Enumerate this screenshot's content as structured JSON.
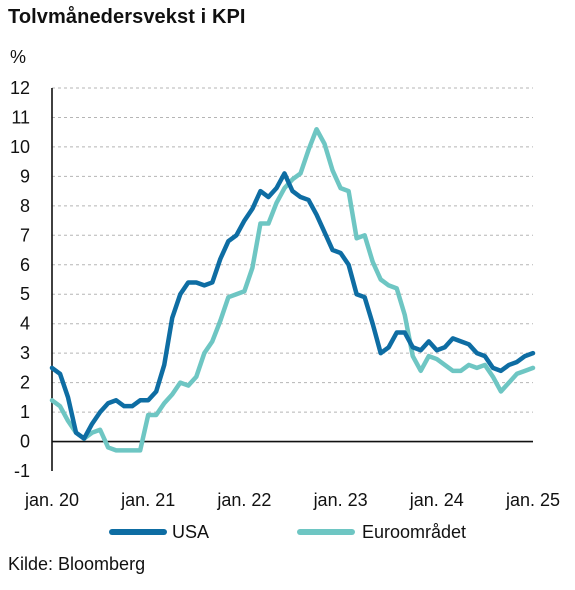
{
  "title": "Tolvmånedersvekst i KPI",
  "source": "Kilde: Bloomberg",
  "colors": {
    "USA": "#0e6da3",
    "Euroområdet": "#6ec6c3",
    "grid": "#b5b5b5",
    "axis": "#111111"
  },
  "chart_data": {
    "type": "line",
    "title": "Tolvmånedersvekst i KPI",
    "ylabel": "%",
    "xlabel": "",
    "ylim": [
      -1,
      12
    ],
    "yticks": [
      -1,
      0,
      1,
      2,
      3,
      4,
      5,
      6,
      7,
      8,
      9,
      10,
      11,
      12
    ],
    "xlim": [
      0,
      60
    ],
    "xticks": [
      {
        "x": 0,
        "label": "jan. 20"
      },
      {
        "x": 12,
        "label": "jan. 21"
      },
      {
        "x": 24,
        "label": "jan. 22"
      },
      {
        "x": 36,
        "label": "jan. 23"
      },
      {
        "x": 48,
        "label": "jan. 24"
      },
      {
        "x": 60,
        "label": "jan. 25"
      }
    ],
    "grid": "horizontal dashed",
    "legend": "bottom",
    "series": [
      {
        "name": "USA",
        "x": [
          0,
          1,
          2,
          3,
          4,
          5,
          6,
          7,
          8,
          9,
          10,
          11,
          12,
          13,
          14,
          15,
          16,
          17,
          18,
          19,
          20,
          21,
          22,
          23,
          24,
          25,
          26,
          27,
          28,
          29,
          30,
          31,
          32,
          33,
          34,
          35,
          36,
          37,
          38,
          39,
          40,
          41,
          42,
          43,
          44,
          45,
          46,
          47,
          48,
          49,
          50,
          51,
          52,
          53,
          54,
          55,
          56,
          57,
          58,
          59,
          60
        ],
        "values": [
          2.5,
          2.3,
          1.5,
          0.3,
          0.1,
          0.6,
          1.0,
          1.3,
          1.4,
          1.2,
          1.2,
          1.4,
          1.4,
          1.7,
          2.6,
          4.2,
          5.0,
          5.4,
          5.4,
          5.3,
          5.4,
          6.2,
          6.8,
          7.0,
          7.5,
          7.9,
          8.5,
          8.3,
          8.6,
          9.1,
          8.5,
          8.3,
          8.2,
          7.7,
          7.1,
          6.5,
          6.4,
          6.0,
          5.0,
          4.9,
          4.0,
          3.0,
          3.2,
          3.7,
          3.7,
          3.2,
          3.1,
          3.4,
          3.1,
          3.2,
          3.5,
          3.4,
          3.3,
          3.0,
          2.9,
          2.5,
          2.4,
          2.6,
          2.7,
          2.9,
          3.0
        ]
      },
      {
        "name": "Euroområdet",
        "x": [
          0,
          1,
          2,
          3,
          4,
          5,
          6,
          7,
          8,
          9,
          10,
          11,
          12,
          13,
          14,
          15,
          16,
          17,
          18,
          19,
          20,
          21,
          22,
          23,
          24,
          25,
          26,
          27,
          28,
          29,
          30,
          31,
          32,
          33,
          34,
          35,
          36,
          37,
          38,
          39,
          40,
          41,
          42,
          43,
          44,
          45,
          46,
          47,
          48,
          49,
          50,
          51,
          52,
          53,
          54,
          55,
          56,
          57,
          58,
          59,
          60
        ],
        "values": [
          1.4,
          1.2,
          0.7,
          0.3,
          0.1,
          0.3,
          0.4,
          -0.2,
          -0.3,
          -0.3,
          -0.3,
          -0.3,
          0.9,
          0.9,
          1.3,
          1.6,
          2.0,
          1.9,
          2.2,
          3.0,
          3.4,
          4.1,
          4.9,
          5.0,
          5.1,
          5.9,
          7.4,
          7.4,
          8.1,
          8.6,
          8.9,
          9.1,
          9.9,
          10.6,
          10.1,
          9.2,
          8.6,
          8.5,
          6.9,
          7.0,
          6.1,
          5.5,
          5.3,
          5.2,
          4.3,
          2.9,
          2.4,
          2.9,
          2.8,
          2.6,
          2.4,
          2.4,
          2.6,
          2.5,
          2.6,
          2.2,
          1.7,
          2.0,
          2.3,
          2.4,
          2.5
        ]
      }
    ]
  }
}
